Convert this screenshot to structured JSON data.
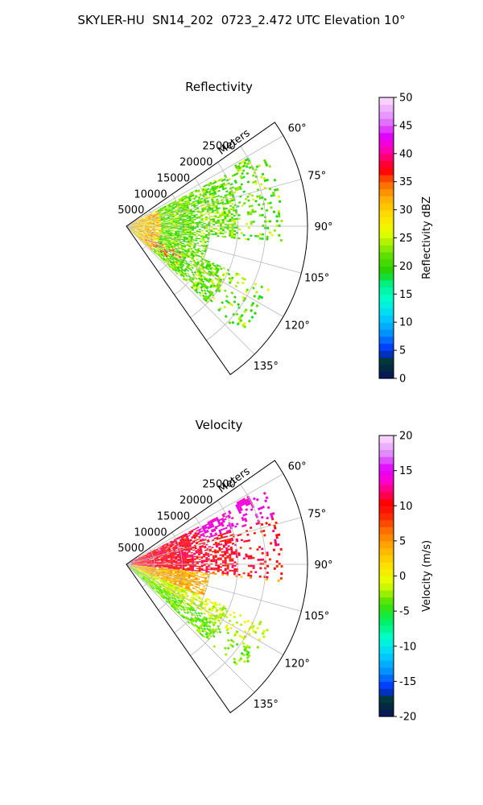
{
  "figure": {
    "title": "SKYLER-HU  SN14_202  0723_2.472 UTC Elevation 10°"
  },
  "colors": {
    "grid": "#b8b8b8",
    "axis": "#000000"
  },
  "chart_data": [
    {
      "type": "heatmap",
      "projection": "polar-sector",
      "title": "Reflectivity",
      "radial_label": "Meters",
      "radial_ticks": [
        5000,
        10000,
        15000,
        20000,
        25000
      ],
      "radial_tick_labels": [
        "5000",
        "10000",
        "15000",
        "20000",
        "25000"
      ],
      "rlim": [
        0,
        32500
      ],
      "angle_range_deg": [
        55,
        145
      ],
      "angle_ticks": [
        60,
        75,
        90,
        105,
        120,
        135
      ],
      "angle_tick_labels": [
        "60°",
        "75°",
        "90°",
        "105°",
        "120°",
        "135°"
      ],
      "grid": true,
      "colorbar": {
        "label": "Reflectivity dBZ",
        "ticks": [
          0,
          5,
          10,
          15,
          20,
          25,
          30,
          35,
          40,
          45,
          50
        ],
        "range": [
          0,
          50
        ]
      },
      "echo_summary": {
        "dominant_range": [
          15,
          25
        ],
        "peak_range": [
          35,
          40
        ],
        "max_range_m": 28000
      }
    },
    {
      "type": "heatmap",
      "projection": "polar-sector",
      "title": "Velocity",
      "radial_label": "Meters",
      "radial_ticks": [
        5000,
        10000,
        15000,
        20000,
        25000
      ],
      "radial_tick_labels": [
        "5000",
        "10000",
        "15000",
        "20000",
        "25000"
      ],
      "rlim": [
        0,
        32500
      ],
      "angle_range_deg": [
        55,
        145
      ],
      "angle_ticks": [
        60,
        75,
        90,
        105,
        120,
        135
      ],
      "angle_tick_labels": [
        "60°",
        "75°",
        "90°",
        "105°",
        "120°",
        "135°"
      ],
      "grid": true,
      "colorbar": {
        "label": "Velocity (m/s)",
        "ticks": [
          -20,
          -15,
          -10,
          -5,
          0,
          5,
          10,
          15,
          20
        ],
        "range": [
          -20,
          20
        ]
      },
      "echo_summary": {
        "dominant_range": [
          0,
          10
        ],
        "peak_range": [
          12,
          15
        ],
        "max_range_m": 28000
      }
    }
  ]
}
